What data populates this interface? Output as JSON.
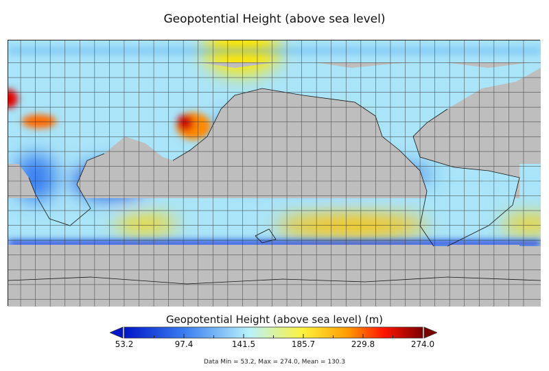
{
  "title": "Geopotential Height (above sea level)",
  "colorbar": {
    "label": "Geopotential Height (above sea level) (m)",
    "ticks": [
      "53.2",
      "97.4",
      "141.5",
      "185.7",
      "229.8",
      "274.0"
    ],
    "colors": [
      "#0016c8",
      "#3a7cf0",
      "#b8f2fb",
      "#fff23a",
      "#ff9a00",
      "#ff1500",
      "#7a0000"
    ]
  },
  "stats": "Data Min = 53.2, Max = 274.0, Mean = 130.3",
  "map_colors": {
    "land": "#bebebe",
    "grid": "#333333"
  }
}
